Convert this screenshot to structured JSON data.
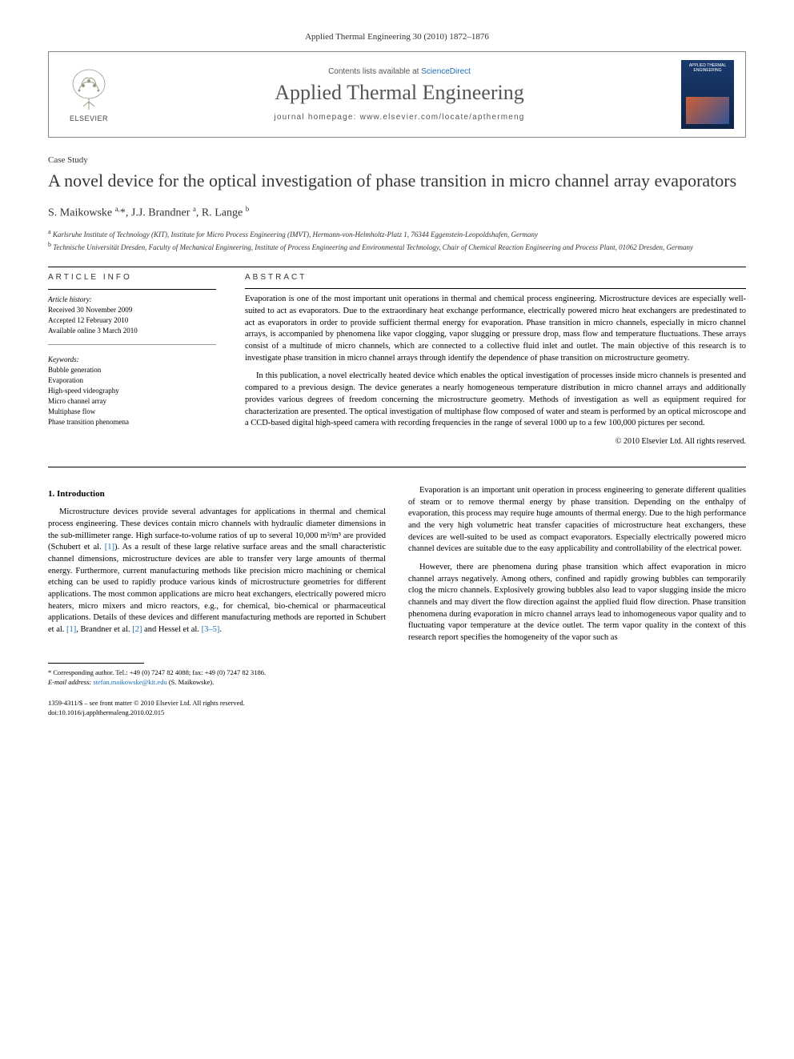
{
  "journal_header": "Applied Thermal Engineering 30 (2010) 1872–1876",
  "header": {
    "elsevier_label": "ELSEVIER",
    "contents_text": "Contents lists available at ",
    "contents_link": "ScienceDirect",
    "journal_name": "Applied Thermal Engineering",
    "homepage_label": "journal homepage: ",
    "homepage_url": "www.elsevier.com/locate/apthermeng",
    "cover_title": "APPLIED THERMAL ENGINEERING"
  },
  "article_type": "Case Study",
  "title": "A novel device for the optical investigation of phase transition in micro channel array evaporators",
  "authors_html": "S. Maikowske <sup>a,</sup>*, J.J. Brandner <sup>a</sup>, R. Lange <sup>b</sup>",
  "affiliations": [
    {
      "sup": "a",
      "text": "Karlsruhe Institute of Technology (KIT), Institute for Micro Process Engineering (IMVT), Hermann-von-Helmholtz-Platz 1, 76344 Eggenstein-Leopoldshafen, Germany"
    },
    {
      "sup": "b",
      "text": "Technische Universität Dresden, Faculty of Mechanical Engineering, Institute of Process Engineering and Environmental Technology, Chair of Chemical Reaction Engineering and Process Plant, 01062 Dresden, Germany"
    }
  ],
  "info": {
    "heading": "ARTICLE INFO",
    "history_label": "Article history:",
    "history": [
      "Received 30 November 2009",
      "Accepted 12 February 2010",
      "Available online 3 March 2010"
    ],
    "keywords_label": "Keywords:",
    "keywords": [
      "Bubble generation",
      "Evaporation",
      "High-speed videography",
      "Micro channel array",
      "Multiphase flow",
      "Phase transition phenomena"
    ]
  },
  "abstract": {
    "heading": "ABSTRACT",
    "p1": "Evaporation is one of the most important unit operations in thermal and chemical process engineering. Microstructure devices are especially well-suited to act as evaporators. Due to the extraordinary heat exchange performance, electrically powered micro heat exchangers are predestinated to act as evaporators in order to provide sufficient thermal energy for evaporation. Phase transition in micro channels, especially in micro channel arrays, is accompanied by phenomena like vapor clogging, vapor slugging or pressure drop, mass flow and temperature fluctuations. These arrays consist of a multitude of micro channels, which are connected to a collective fluid inlet and outlet. The main objective of this research is to investigate phase transition in micro channel arrays through identify the dependence of phase transition on microstructure geometry.",
    "p2": "In this publication, a novel electrically heated device which enables the optical investigation of processes inside micro channels is presented and compared to a previous design. The device generates a nearly homogeneous temperature distribution in micro channel arrays and additionally provides various degrees of freedom concerning the microstructure geometry. Methods of investigation as well as equipment required for characterization are presented. The optical investigation of multiphase flow composed of water and steam is performed by an optical microscope and a CCD-based digital high-speed camera with recording frequencies in the range of several 1000 up to a few 100,000 pictures per second.",
    "copyright": "© 2010 Elsevier Ltd. All rights reserved."
  },
  "intro": {
    "heading": "1. Introduction",
    "p1_pre": "Microstructure devices provide several advantages for applications in thermal and chemical process engineering. These devices contain micro channels with hydraulic diameter dimensions in the sub-millimeter range. High surface-to-volume ratios of up to several 10,000 m²/m³ are provided (Schubert et al. ",
    "p1_ref1": "[1]",
    "p1_post": "). As a result of these large relative surface areas and the small characteristic channel dimensions, microstructure devices are able to transfer very large amounts of thermal energy. Furthermore, current manufacturing methods like precision micro machining or chemical etching can be used to rapidly produce various kinds of microstructure geometries for different applications. The most common applications are micro heat exchangers, electrically powered micro heaters, micro mixers and micro reactors, e.g., for chemical, bio-chemical or pharmaceutical applications. Details of ",
    "p1_cont_pre": "these devices and different manufacturing methods are reported in Schubert et al. ",
    "p1_ref1b": "[1]",
    "p1_mid1": ", Brandner et al. ",
    "p1_ref2": "[2]",
    "p1_mid2": " and Hessel et al. ",
    "p1_ref3": "[3–5]",
    "p1_end": ".",
    "p2": "Evaporation is an important unit operation in process engineering to generate different qualities of steam or to remove thermal energy by phase transition. Depending on the enthalpy of evaporation, this process may require huge amounts of thermal energy. Due to the high performance and the very high volumetric heat transfer capacities of microstructure heat exchangers, these devices are well-suited to be used as compact evaporators. Especially electrically powered micro channel devices are suitable due to the easy applicability and controllability of the electrical power.",
    "p3": "However, there are phenomena during phase transition which affect evaporation in micro channel arrays negatively. Among others, confined and rapidly growing bubbles can temporarily clog the micro channels. Explosively growing bubbles also lead to vapor slugging inside the micro channels and may divert the flow direction against the applied fluid flow direction. Phase transition phenomena during evaporation in micro channel arrays lead to inhomogeneous vapor quality and to fluctuating vapor temperature at the device outlet. The term vapor quality in the context of this research report specifies the homogeneity of the vapor such as"
  },
  "corresponding": {
    "text": "* Corresponding author. Tel.: +49 (0) 7247 82 4088; fax: +49 (0) 7247 82 3186.",
    "email_label": "E-mail address: ",
    "email": "stefan.maikowske@kit.edu",
    "name": " (S. Maikowske)."
  },
  "footer": {
    "line1": "1359-4311/$ – see front matter © 2010 Elsevier Ltd. All rights reserved.",
    "line2": "doi:10.1016/j.applthermaleng.2010.02.015"
  }
}
